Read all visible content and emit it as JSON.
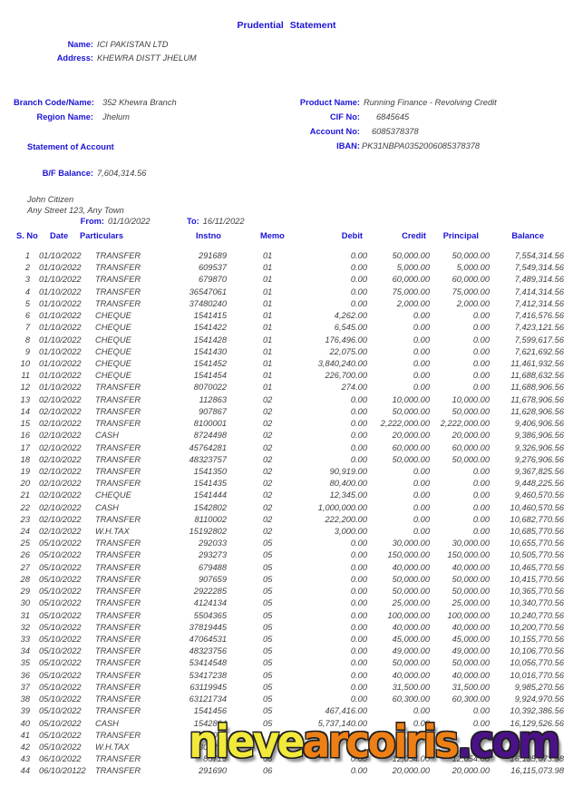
{
  "title": "Prudential Statement",
  "colors": {
    "accent_blue": "#1c13d6",
    "value_text": "#3f3f3f",
    "watermark_yellow": "#f2e93a",
    "watermark_orange": "#ee7f15",
    "watermark_purple": "#4a1286"
  },
  "header": {
    "name_label": "Name:",
    "name_value": "ICI PAKISTAN LTD",
    "address_label": "Address:",
    "address_value": "KHEWRA DISTT JHELUM",
    "branch_label": "Branch Code/Name:",
    "branch_value": "352 Khewra Branch",
    "region_label": "Region Name:",
    "region_value": "Jhelum",
    "product_label": "Product Name:",
    "product_value": "Running Finance - Revolving Credit",
    "cif_label": "CIF No:",
    "cif_value": "6845645",
    "account_label": "Account No:",
    "account_value": "6085378378",
    "iban_label": "IBAN:",
    "iban_value": "PK31NBPA0352006085378378",
    "section_heading": "Statement of Account",
    "bf_label": "B/F Balance:",
    "bf_value": "7,604,314.56",
    "customer_name": "John Citizen",
    "customer_address": "Any Street 123, Any Town",
    "from_label": "From:",
    "from_value": "01/10/2022",
    "to_label": "To:",
    "to_value": "16/11/2022"
  },
  "table": {
    "columns": [
      "S. No",
      "Date",
      "Particulars",
      "Instno",
      "Memo",
      "Debit",
      "Credit",
      "Principal",
      "Balance"
    ],
    "rows": [
      [
        "1",
        "01/10/2022",
        "TRANSFER",
        "291689",
        "01",
        "0.00",
        "50,000.00",
        "50,000.00",
        "7,554,314.56"
      ],
      [
        "2",
        "01/10/2022",
        "TRANSFER",
        "609537",
        "01",
        "0.00",
        "5,000.00",
        "5,000.00",
        "7,549,314.56"
      ],
      [
        "3",
        "01/10/2022",
        "TRANSFER",
        "679870",
        "01",
        "0.00",
        "60,000.00",
        "60,000.00",
        "7,489,314.56"
      ],
      [
        "4",
        "01/10/2022",
        "TRANSFER",
        "36547061",
        "01",
        "0.00",
        "75,000.00",
        "75,000.00",
        "7,414,314.56"
      ],
      [
        "5",
        "01/10/2022",
        "TRANSFER",
        "37480240",
        "01",
        "0.00",
        "2,000.00",
        "2,000.00",
        "7,412,314.56"
      ],
      [
        "6",
        "01/10/2022",
        "CHEQUE",
        "1541415",
        "01",
        "4,262.00",
        "0.00",
        "0.00",
        "7,416,576.56"
      ],
      [
        "7",
        "01/10/2022",
        "CHEQUE",
        "1541422",
        "01",
        "6,545.00",
        "0.00",
        "0.00",
        "7,423,121.56"
      ],
      [
        "8",
        "01/10/2022",
        "CHEQUE",
        "1541428",
        "01",
        "176,496.00",
        "0.00",
        "0.00",
        "7,599,617.56"
      ],
      [
        "9",
        "01/10/2022",
        "CHEQUE",
        "1541430",
        "01",
        "22,075.00",
        "0.00",
        "0.00",
        "7,621,692.56"
      ],
      [
        "10",
        "01/10/2022",
        "CHEQUE",
        "1541452",
        "01",
        "3,840,240.00",
        "0.00",
        "0.00",
        "11,461,932.56"
      ],
      [
        "11",
        "01/10/2022",
        "CHEQUE",
        "1541454",
        "01",
        "226,700.00",
        "0.00",
        "0.00",
        "11,688,632.56"
      ],
      [
        "12",
        "01/10/2022",
        "TRANSFER",
        "8070022",
        "01",
        "274.00",
        "0.00",
        "0.00",
        "11,688,906.56"
      ],
      [
        "13",
        "02/10/2022",
        "TRANSFER",
        "112863",
        "02",
        "0.00",
        "10,000.00",
        "10,000.00",
        "11,678,906.56"
      ],
      [
        "14",
        "02/10/2022",
        "TRANSFER",
        "907867",
        "02",
        "0.00",
        "50,000.00",
        "50,000.00",
        "11,628,906.56"
      ],
      [
        "15",
        "02/10/2022",
        "TRANSFER",
        "8100001",
        "02",
        "0.00",
        "2,222,000.00",
        "2,222,000.00",
        "9,406,906.56"
      ],
      [
        "16",
        "02/10/2022",
        "CASH",
        "8724498",
        "02",
        "0.00",
        "20,000.00",
        "20,000.00",
        "9,386,906.56"
      ],
      [
        "17",
        "02/10/2022",
        "TRANSFER",
        "45764281",
        "02",
        "0.00",
        "60,000.00",
        "60,000.00",
        "9,326,906.56"
      ],
      [
        "18",
        "02/10/2022",
        "TRANSFER",
        "48323757",
        "02",
        "0.00",
        "50,000.00",
        "50,000.00",
        "9,276,906.56"
      ],
      [
        "19",
        "02/10/2022",
        "TRANSFER",
        "1541350",
        "02",
        "90,919.00",
        "0.00",
        "0.00",
        "9,367,825.56"
      ],
      [
        "20",
        "02/10/2022",
        "TRANSFER",
        "1541435",
        "02",
        "80,400.00",
        "0.00",
        "0.00",
        "9,448,225.56"
      ],
      [
        "21",
        "02/10/2022",
        "CHEQUE",
        "1541444",
        "02",
        "12,345.00",
        "0.00",
        "0.00",
        "9,460,570.56"
      ],
      [
        "22",
        "02/10/2022",
        "CASH",
        "1542802",
        "02",
        "1,000,000.00",
        "0.00",
        "0.00",
        "10,460,570.56"
      ],
      [
        "23",
        "02/10/2022",
        "TRANSFER",
        "8110002",
        "02",
        "222,200.00",
        "0.00",
        "0.00",
        "10,682,770.56"
      ],
      [
        "24",
        "02/10/2022",
        "W.H.TAX",
        "15192802",
        "02",
        "3,000.00",
        "0.00",
        "0.00",
        "10,685,770.56"
      ],
      [
        "25",
        "05/10/2022",
        "TRANSFER",
        "292033",
        "05",
        "0.00",
        "30,000.00",
        "30,000.00",
        "10,655,770.56"
      ],
      [
        "26",
        "05/10/2022",
        "TRANSFER",
        "293273",
        "05",
        "0.00",
        "150,000.00",
        "150,000.00",
        "10,505,770.56"
      ],
      [
        "27",
        "05/10/2022",
        "TRANSFER",
        "679488",
        "05",
        "0.00",
        "40,000.00",
        "40,000.00",
        "10,465,770.56"
      ],
      [
        "28",
        "05/10/2022",
        "TRANSFER",
        "907659",
        "05",
        "0.00",
        "50,000.00",
        "50,000.00",
        "10,415,770.56"
      ],
      [
        "29",
        "05/10/2022",
        "TRANSFER",
        "2922285",
        "05",
        "0.00",
        "50,000.00",
        "50,000.00",
        "10,365,770.56"
      ],
      [
        "30",
        "05/10/2022",
        "TRANSFER",
        "4124134",
        "05",
        "0.00",
        "25,000.00",
        "25,000.00",
        "10,340,770.56"
      ],
      [
        "31",
        "05/10/2022",
        "TRANSFER",
        "5504365",
        "05",
        "0.00",
        "100,000.00",
        "100,000.00",
        "10,240,770.56"
      ],
      [
        "32",
        "05/10/2022",
        "TRANSFER",
        "37819445",
        "05",
        "0.00",
        "40,000.00",
        "40,000.00",
        "10,200,770.56"
      ],
      [
        "33",
        "05/10/2022",
        "TRANSFER",
        "47064531",
        "05",
        "0.00",
        "45,000.00",
        "45,000.00",
        "10,155,770.56"
      ],
      [
        "34",
        "05/10/2022",
        "TRANSFER",
        "48323756",
        "05",
        "0.00",
        "49,000.00",
        "49,000.00",
        "10,106,770.56"
      ],
      [
        "35",
        "05/10/2022",
        "TRANSFER",
        "53414548",
        "05",
        "0.00",
        "50,000.00",
        "50,000.00",
        "10,056,770.56"
      ],
      [
        "36",
        "05/10/2022",
        "TRANSFER",
        "53417238",
        "05",
        "0.00",
        "40,000.00",
        "40,000.00",
        "10,016,770.56"
      ],
      [
        "37",
        "05/10/2022",
        "TRANSFER",
        "63119945",
        "05",
        "0.00",
        "31,500.00",
        "31,500.00",
        "9,985,270.56"
      ],
      [
        "38",
        "05/10/2022",
        "TRANSFER",
        "63121734",
        "05",
        "0.00",
        "60,300.00",
        "60,300.00",
        "9,924,970.56"
      ],
      [
        "39",
        "05/10/2022",
        "TRANSFER",
        "1541456",
        "05",
        "467,416.00",
        "0.00",
        "0.00",
        "10,392,386.56"
      ],
      [
        "40",
        "05/10/2022",
        "CASH",
        "1542804",
        "05",
        "5,737,140.00",
        "0.00",
        "0.00",
        "16,129,526.56"
      ],
      [
        "41",
        "05/10/2022",
        "TRANSFER",
        "4120003",
        "",
        "",
        "",
        "0.0",
        ""
      ],
      [
        "42",
        "05/10/2022",
        "W.H.TAX",
        "2306280",
        "",
        "",
        "",
        "",
        ""
      ],
      [
        "43",
        "06/10/2022",
        "TRANSFER",
        "80715",
        "06",
        "0.00",
        "12,054.00",
        "12,054.00",
        "16,135,073.98"
      ],
      [
        "44",
        "06/10/20122",
        "TRANSFER",
        "291690",
        "06",
        "0.00",
        "20,000.00",
        "20,000.00",
        "16,115,073.98"
      ]
    ]
  },
  "watermark": {
    "part_yellow": "nieve",
    "part_orange": "arcoiris",
    "part_purple": ".com"
  }
}
